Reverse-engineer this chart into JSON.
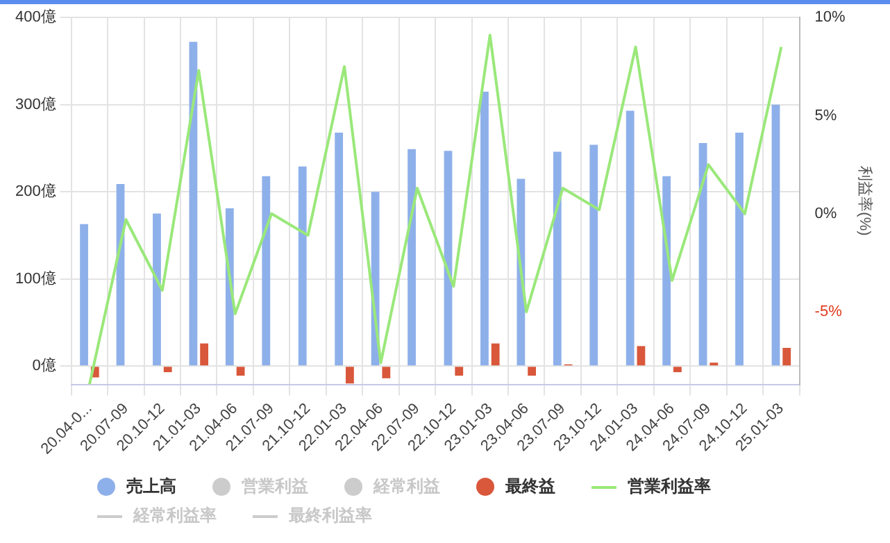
{
  "chart_data": {
    "type": "bar",
    "categories": [
      "20.04-0...",
      "20.07-09",
      "20.10-12",
      "21.01-03",
      "21.04-06",
      "21.07-09",
      "21.10-12",
      "22.01-03",
      "22.04-06",
      "22.07-09",
      "22.10-12",
      "23.01-03",
      "23.04-06",
      "23.07-09",
      "23.10-12",
      "24.01-03",
      "24.04-06",
      "24.07-09",
      "24.10-12",
      "25.01-03"
    ],
    "series": [
      {
        "name": "売上高",
        "color": "#8eb0ea",
        "values": [
          163,
          209,
          175,
          372,
          181,
          218,
          229,
          268,
          200,
          249,
          247,
          315,
          215,
          246,
          254,
          293,
          218,
          256,
          268,
          300
        ]
      },
      {
        "name": "営業利益",
        "color": "#cccccc",
        "values": [
          null,
          null,
          null,
          null,
          null,
          null,
          null,
          null,
          null,
          null,
          null,
          null,
          null,
          null,
          null,
          null,
          null,
          null,
          null,
          null
        ]
      },
      {
        "name": "経常利益",
        "color": "#cccccc",
        "values": [
          null,
          null,
          null,
          null,
          null,
          null,
          null,
          null,
          null,
          null,
          null,
          null,
          null,
          null,
          null,
          null,
          null,
          null,
          null,
          null
        ]
      },
      {
        "name": "最終益",
        "color": "#d9573a",
        "values": [
          -13,
          0,
          -7,
          26,
          -11,
          0,
          0,
          -20,
          -14,
          0,
          -11,
          26,
          -11,
          2,
          0,
          23,
          -7,
          4,
          0,
          21
        ]
      },
      {
        "name": "営業利益率",
        "type": "line",
        "axis": "y2",
        "color": "#9ae87a",
        "values": [
          -8.7,
          -0.3,
          -3.9,
          7.3,
          -5.1,
          0,
          -1.1,
          7.5,
          -7.6,
          1.3,
          -3.7,
          9.1,
          -5.0,
          1.3,
          0.2,
          8.5,
          -3.4,
          2.5,
          0,
          8.5
        ]
      },
      {
        "name": "経常利益率",
        "type": "line",
        "color": "#cccccc",
        "values": [
          null,
          null,
          null,
          null,
          null,
          null,
          null,
          null,
          null,
          null,
          null,
          null,
          null,
          null,
          null,
          null,
          null,
          null,
          null,
          null
        ]
      },
      {
        "name": "最終利益率",
        "type": "line",
        "color": "#cccccc",
        "values": [
          null,
          null,
          null,
          null,
          null,
          null,
          null,
          null,
          null,
          null,
          null,
          null,
          null,
          null,
          null,
          null,
          null,
          null,
          null,
          null
        ]
      }
    ],
    "ylim": [
      -21,
      400
    ],
    "yticks": [
      {
        "value": 0,
        "label": "0億"
      },
      {
        "value": 100,
        "label": "100億"
      },
      {
        "value": 200,
        "label": "200億"
      },
      {
        "value": 300,
        "label": "300億"
      },
      {
        "value": 400,
        "label": "400億"
      }
    ],
    "y2lim": [
      -8.7,
      10
    ],
    "y2ticks": [
      {
        "value": -5,
        "label": "-5%"
      },
      {
        "value": 0,
        "label": "0%"
      },
      {
        "value": 5,
        "label": "5%"
      },
      {
        "value": 10,
        "label": "10%"
      }
    ],
    "y2label": "利益率(%)",
    "grid": true,
    "legend": "bottom"
  }
}
